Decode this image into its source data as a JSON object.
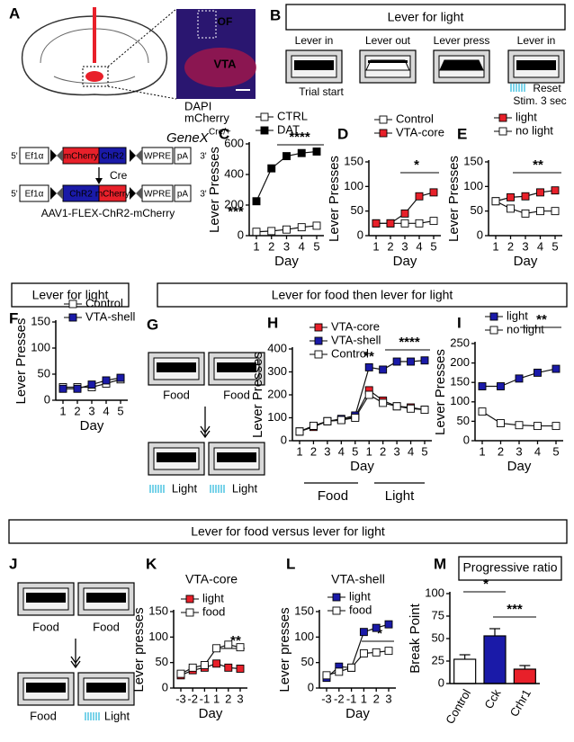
{
  "panels": [
    "A",
    "B",
    "C",
    "D",
    "E",
    "F",
    "G",
    "H",
    "I",
    "J",
    "K",
    "L",
    "M"
  ],
  "headers": [
    "Lever for light",
    "Lever for light",
    "Lever for food then lever for light",
    "Lever for food versus lever for light"
  ],
  "panel_a": {
    "regions": [
      "OF",
      "VTA"
    ],
    "stains": [
      "DAPI",
      "mCherry"
    ],
    "genotype": "GeneX",
    "genotype_sup": "Cre/+",
    "construct_top": [
      "5'",
      "Ef1α",
      "mCherry",
      "ChR2",
      "WPRE",
      "pA",
      "3'"
    ],
    "recombinase": "Cre",
    "construct_bottom": [
      "5'",
      "Ef1α",
      "ChR2",
      "mCherry",
      "WPRE",
      "pA",
      "3'"
    ],
    "virus": "AAV1-FLEX-ChR2-mCherry"
  },
  "panel_b": {
    "steps": [
      "Lever in",
      "Lever out",
      "Lever press",
      "Lever in"
    ],
    "notes": [
      "Trial start",
      "Reset",
      "Stim. 3 sec"
    ]
  },
  "panel_g": {
    "labels": [
      "Food",
      "Food",
      "Light",
      "Light"
    ]
  },
  "panel_j": {
    "labels": [
      "Food",
      "Food",
      "Food",
      "Light"
    ]
  },
  "chart_data": [
    {
      "type": "line",
      "y_label": "Lever  Presses",
      "x_label": "Day",
      "categories": [
        "1",
        "2",
        "3",
        "4",
        "5"
      ],
      "series": [
        {
          "name": "CTRL",
          "color": "#ffffff",
          "values": [
            25,
            30,
            40,
            55,
            65
          ]
        },
        {
          "name": "DAT",
          "color": "#000000",
          "values": [
            225,
            440,
            520,
            540,
            550
          ]
        }
      ],
      "ylim": [
        0,
        600
      ],
      "yticks": [
        0,
        200,
        400,
        600
      ],
      "annotations": [
        "***",
        "****"
      ]
    },
    {
      "type": "line",
      "y_label": "Lever Presses",
      "x_label": "Day",
      "categories": [
        "1",
        "2",
        "3",
        "4",
        "5"
      ],
      "series": [
        {
          "name": "Control",
          "color": "#ffffff",
          "values": [
            25,
            25,
            25,
            25,
            30
          ]
        },
        {
          "name": "VTA-core",
          "color": "#e8202a",
          "values": [
            25,
            25,
            45,
            80,
            88
          ]
        }
      ],
      "ylim": [
        0,
        150
      ],
      "yticks": [
        0,
        50,
        100,
        150
      ],
      "annotations": [
        "*"
      ]
    },
    {
      "type": "line",
      "y_label": "Lever  Presses",
      "x_label": "Day",
      "categories": [
        "1",
        "2",
        "3",
        "4",
        "5"
      ],
      "series": [
        {
          "name": "light",
          "color": "#e8202a",
          "values": [
            70,
            78,
            80,
            88,
            92
          ]
        },
        {
          "name": "no light",
          "color": "#ffffff",
          "values": [
            70,
            55,
            45,
            50,
            50
          ]
        }
      ],
      "ylim": [
        0,
        150
      ],
      "yticks": [
        0,
        50,
        100,
        150
      ],
      "annotations": [
        "**"
      ]
    },
    {
      "type": "line",
      "y_label": "Lever Presses",
      "x_label": "Day",
      "categories": [
        "1",
        "2",
        "3",
        "4",
        "5"
      ],
      "series": [
        {
          "name": "Control",
          "color": "#ffffff",
          "values": [
            25,
            25,
            25,
            32,
            40
          ]
        },
        {
          "name": "VTA-shell",
          "color": "#1a1aa8",
          "values": [
            22,
            22,
            30,
            38,
            43
          ]
        }
      ],
      "ylim": [
        0,
        150
      ],
      "yticks": [
        0,
        50,
        100,
        150
      ],
      "annotations": []
    },
    {
      "type": "line",
      "y_label": "Lever  Presses",
      "x_label": "Day",
      "categories": [
        "1",
        "2",
        "3",
        "4",
        "5",
        "1",
        "2",
        "3",
        "4",
        "5"
      ],
      "series": [
        {
          "name": "VTA-core",
          "color": "#e8202a",
          "values": [
            40,
            60,
            85,
            90,
            105,
            220,
            175,
            150,
            145,
            135
          ]
        },
        {
          "name": "VTA-shell",
          "color": "#1a1aa8",
          "values": [
            40,
            65,
            85,
            95,
            110,
            320,
            310,
            345,
            345,
            350
          ]
        },
        {
          "name": "Control",
          "color": "#ffffff",
          "values": [
            40,
            65,
            85,
            90,
            100,
            200,
            165,
            150,
            140,
            135
          ]
        }
      ],
      "ylim": [
        0,
        400
      ],
      "yticks": [
        0,
        100,
        200,
        300,
        400
      ],
      "annotations": [
        "**",
        "****"
      ],
      "groups": [
        "Food",
        "Light"
      ]
    },
    {
      "type": "line",
      "y_label": "Lever Presses",
      "x_label": "Day",
      "categories": [
        "1",
        "2",
        "3",
        "4",
        "5"
      ],
      "series": [
        {
          "name": "light",
          "color": "#1a1aa8",
          "values": [
            140,
            140,
            160,
            175,
            185
          ]
        },
        {
          "name": "no light",
          "color": "#ffffff",
          "values": [
            75,
            45,
            40,
            38,
            38
          ]
        }
      ],
      "ylim": [
        0,
        250
      ],
      "yticks": [
        0,
        50,
        100,
        150,
        200,
        250
      ],
      "annotations": [
        "**"
      ]
    },
    {
      "type": "line",
      "title": "VTA-core",
      "y_label": "Lever presses",
      "x_label": "Day",
      "categories": [
        "-3",
        "-2",
        "-1",
        "1",
        "2",
        "3"
      ],
      "series": [
        {
          "name": "light",
          "color": "#e8202a",
          "values": [
            25,
            35,
            40,
            48,
            40,
            38
          ]
        },
        {
          "name": "food",
          "color": "#ffffff",
          "values": [
            28,
            40,
            45,
            78,
            85,
            80
          ]
        }
      ],
      "ylim": [
        0,
        150
      ],
      "yticks": [
        0,
        50,
        100,
        150
      ],
      "annotations": [
        "**"
      ]
    },
    {
      "type": "line",
      "title": "VTA-shell",
      "y_label": "Lever presses",
      "x_label": "Day",
      "categories": [
        "-3",
        "-2",
        "-1",
        "1",
        "2",
        "3"
      ],
      "series": [
        {
          "name": "light",
          "color": "#1a1aa8",
          "values": [
            20,
            42,
            40,
            110,
            118,
            125
          ]
        },
        {
          "name": "food",
          "color": "#ffffff",
          "values": [
            25,
            32,
            40,
            68,
            70,
            73
          ]
        }
      ],
      "ylim": [
        0,
        150
      ],
      "yticks": [
        0,
        50,
        100,
        150
      ],
      "annotations": [
        "*"
      ]
    },
    {
      "type": "bar",
      "title": "Progressive ratio",
      "y_label": "Break Point",
      "categories": [
        "Control",
        "Cck",
        "Crhr1"
      ],
      "values": [
        27,
        53,
        16
      ],
      "errors": [
        5,
        8,
        4
      ],
      "colors": [
        "#ffffff",
        "#1a1aa8",
        "#e8202a"
      ],
      "ylim": [
        0,
        100
      ],
      "yticks": [
        0,
        25,
        50,
        75,
        100
      ],
      "annotations": [
        "*",
        "***"
      ]
    }
  ]
}
